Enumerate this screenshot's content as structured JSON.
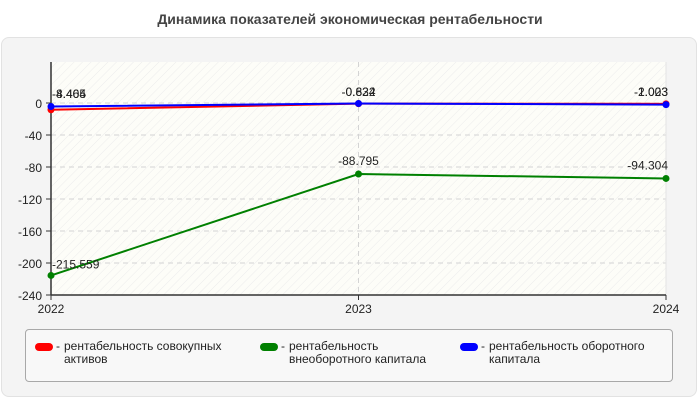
{
  "title": "Динамика показателей экономическая рентабельности",
  "legend": {
    "items": [
      {
        "label": "рентабельность совокупных активов",
        "color": "#ff0000"
      },
      {
        "label": "рентабельность внеоборотного капитала",
        "color": "#008000"
      },
      {
        "label": "рентабельность оборотного капитала",
        "color": "#0000ff"
      }
    ]
  },
  "chart_data": {
    "type": "line",
    "title": "Динамика показателей экономическая рентабельности",
    "xlabel": "",
    "ylabel": "",
    "categories": [
      "2022",
      "2023",
      "2024"
    ],
    "yticks": [
      0,
      -40,
      -80,
      -120,
      -160,
      -200,
      -240
    ],
    "ylim": [
      -240,
      51
    ],
    "grid": true,
    "legend_position": "bottom",
    "series": [
      {
        "name": "рентабельность совокупных активов",
        "color": "#ff0000",
        "values": [
          -8.464,
          -0.834,
          -1.023
        ]
      },
      {
        "name": "рентабельность внеоборотного капитала",
        "color": "#008000",
        "values": [
          -215.559,
          -88.795,
          -94.304
        ]
      },
      {
        "name": "рентабельность оборотного капитала",
        "color": "#0000ff",
        "values": [
          -4.405,
          -0.622,
          -2.003
        ]
      }
    ]
  }
}
